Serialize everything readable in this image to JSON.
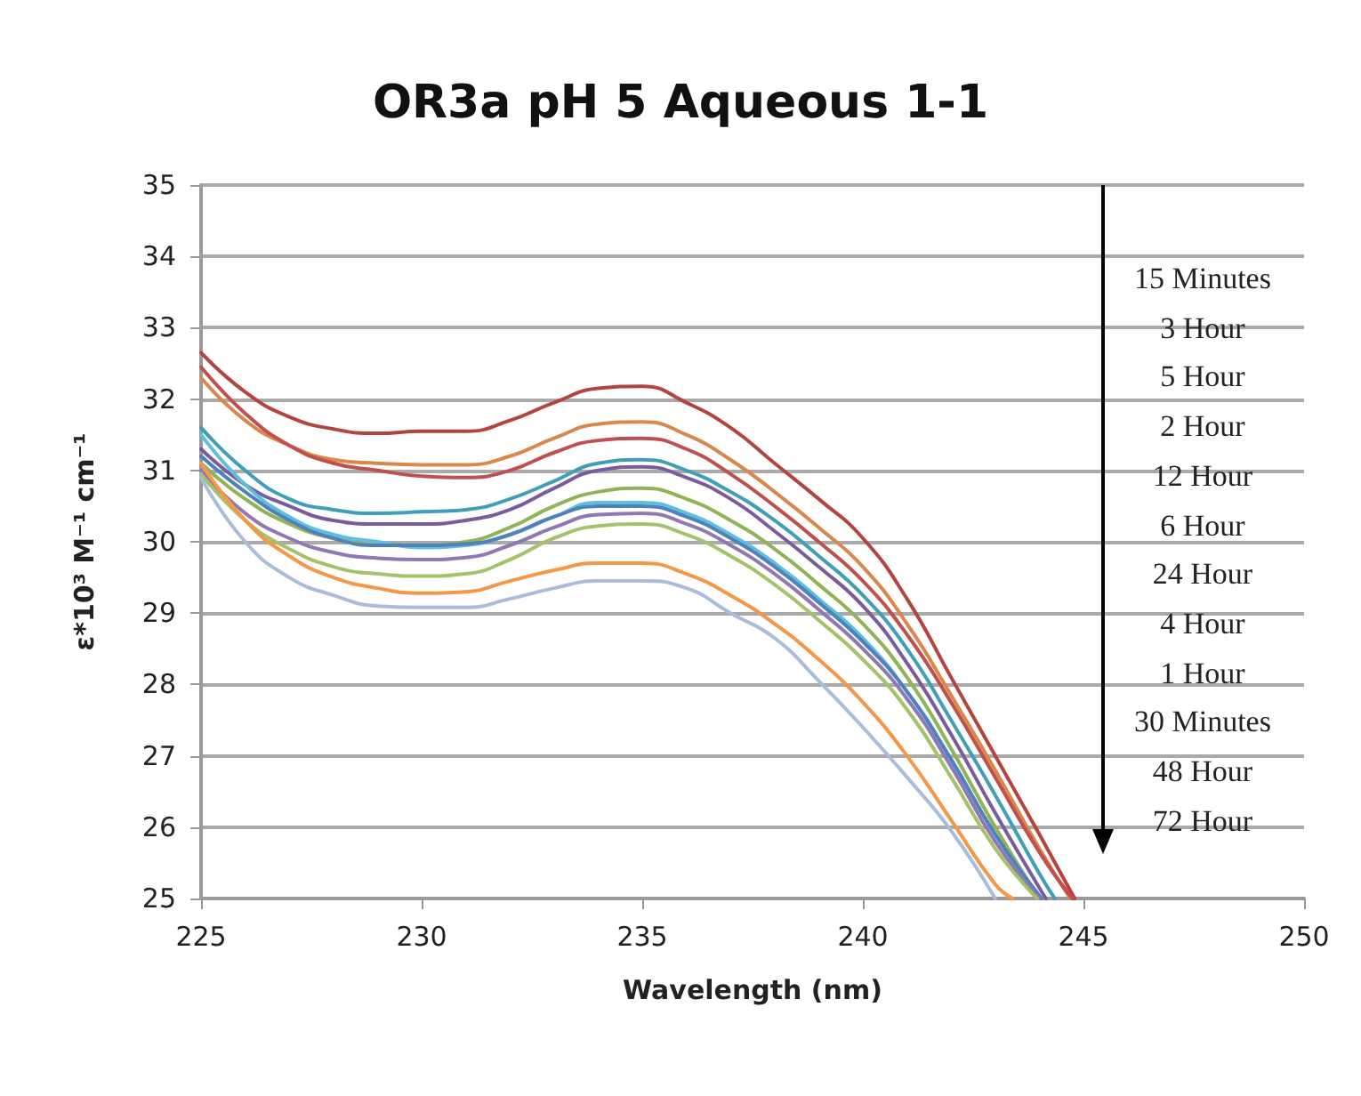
{
  "chart_data": {
    "type": "line",
    "title": "OR3a pH 5 Aqueous 1-1",
    "xlabel": "Wavelength (nm)",
    "ylabel": "ε*10³ M⁻¹ cm⁻¹",
    "xlim": [
      225,
      250
    ],
    "xticks": [
      225,
      230,
      235,
      240,
      245,
      250
    ],
    "ylim": [
      25,
      35
    ],
    "yticks": [
      25,
      26,
      27,
      28,
      29,
      30,
      31,
      32,
      33,
      34,
      35
    ],
    "grid": "y",
    "marker": "none",
    "line_style": "solid",
    "annotations": [
      "15 Minutes",
      "3 Hour",
      "5 Hour",
      "2 Hour",
      "12 Hour",
      "6 Hour",
      "24 Hour",
      "4 Hour",
      "1 Hour",
      "30 Minutes",
      "48 Hour",
      "72 Hour"
    ],
    "series": [
      {
        "color": "#b5443f",
        "x": [
          225,
          226,
          227,
          228,
          229,
          230,
          231,
          232,
          233,
          234,
          235,
          236,
          237,
          238,
          239,
          240,
          241,
          242,
          243,
          244,
          244.8
        ],
        "values": [
          32.65,
          32.1,
          31.75,
          31.58,
          31.52,
          31.55,
          31.55,
          31.7,
          31.95,
          32.15,
          32.18,
          31.95,
          31.6,
          31.1,
          30.6,
          30.05,
          29.2,
          28.1,
          27.0,
          25.9,
          25
        ]
      },
      {
        "color": "#d9874a",
        "x": [
          225,
          226,
          227,
          228,
          229,
          230,
          231,
          232,
          233,
          234,
          235,
          236,
          237,
          238,
          239,
          240,
          241,
          242,
          243,
          244,
          244.7
        ],
        "values": [
          32.3,
          31.7,
          31.35,
          31.15,
          31.1,
          31.08,
          31.08,
          31.2,
          31.45,
          31.65,
          31.68,
          31.5,
          31.15,
          30.7,
          30.2,
          29.65,
          28.85,
          27.85,
          26.8,
          25.7,
          25
        ]
      },
      {
        "color": "#c0504d",
        "x": [
          225,
          226,
          227,
          228,
          229,
          230,
          231,
          232,
          233,
          234,
          235,
          236,
          237,
          238,
          239,
          240,
          241,
          242,
          243,
          244,
          244.75
        ],
        "values": [
          32.45,
          31.8,
          31.35,
          31.1,
          31.0,
          30.92,
          30.9,
          31.0,
          31.25,
          31.42,
          31.45,
          31.3,
          30.95,
          30.5,
          30.0,
          29.45,
          28.7,
          27.75,
          26.7,
          25.65,
          25
        ]
      },
      {
        "color": "#3f9fb8",
        "x": [
          225,
          226,
          227,
          228,
          229,
          230,
          231,
          232,
          233,
          234,
          235,
          236,
          237,
          238,
          239,
          240,
          241,
          242,
          243,
          244,
          244.35
        ],
        "values": [
          31.6,
          31.0,
          30.6,
          30.45,
          30.4,
          30.42,
          30.45,
          30.6,
          30.85,
          31.1,
          31.15,
          31.0,
          30.7,
          30.3,
          29.8,
          29.25,
          28.5,
          27.5,
          26.45,
          25.35,
          25
        ]
      },
      {
        "color": "#7a5c9e",
        "x": [
          225,
          226,
          227,
          228,
          229,
          230,
          231,
          232,
          233,
          234,
          235,
          236,
          237,
          238,
          239,
          240,
          241,
          242,
          243,
          244,
          244.15
        ],
        "values": [
          31.3,
          30.8,
          30.5,
          30.3,
          30.25,
          30.25,
          30.3,
          30.45,
          30.75,
          31.0,
          31.05,
          30.9,
          30.6,
          30.15,
          29.65,
          29.1,
          28.3,
          27.3,
          26.2,
          25.15,
          25
        ]
      },
      {
        "color": "#8fb356",
        "x": [
          225,
          226,
          227,
          228,
          229,
          230,
          231,
          232,
          233,
          234,
          235,
          236,
          237,
          238,
          239,
          240,
          241,
          242,
          243,
          244
        ],
        "values": [
          31.1,
          30.6,
          30.25,
          30.05,
          29.97,
          29.95,
          30.0,
          30.2,
          30.5,
          30.7,
          30.75,
          30.6,
          30.3,
          29.9,
          29.4,
          28.85,
          28.1,
          27.1,
          26.0,
          25.0
        ]
      },
      {
        "color": "#5cc0dc",
        "x": [
          225,
          226,
          227,
          228,
          229,
          230,
          231,
          232,
          233,
          234,
          235,
          236,
          237,
          238,
          239,
          240,
          241,
          242,
          243,
          244.05
        ],
        "values": [
          31.5,
          30.8,
          30.35,
          30.1,
          30.0,
          29.92,
          29.95,
          30.1,
          30.35,
          30.55,
          30.55,
          30.4,
          30.1,
          29.7,
          29.2,
          28.65,
          27.9,
          26.95,
          25.9,
          25
        ]
      },
      {
        "color": "#4f81bd",
        "x": [
          225,
          226,
          227,
          228,
          229,
          230,
          231,
          232,
          233,
          234,
          235,
          236,
          237,
          238,
          239,
          240,
          241,
          242,
          243,
          244.05
        ],
        "values": [
          31.2,
          30.7,
          30.3,
          30.05,
          29.95,
          29.95,
          29.97,
          30.1,
          30.35,
          30.5,
          30.5,
          30.35,
          30.05,
          29.65,
          29.15,
          28.6,
          27.9,
          26.95,
          25.9,
          25
        ]
      },
      {
        "color": "#9078b4",
        "x": [
          225,
          226,
          227,
          228,
          229,
          230,
          231,
          232,
          233,
          234,
          235,
          236,
          237,
          238,
          239,
          240,
          241,
          242,
          243,
          244
        ],
        "values": [
          31.0,
          30.4,
          30.05,
          29.85,
          29.77,
          29.75,
          29.78,
          29.95,
          30.2,
          30.38,
          30.4,
          30.25,
          29.95,
          29.55,
          29.05,
          28.5,
          27.8,
          26.85,
          25.8,
          25
        ]
      },
      {
        "color": "#a5c26a",
        "x": [
          225,
          226,
          227,
          228,
          229,
          230,
          231,
          232,
          233,
          234,
          235,
          236,
          237,
          238,
          239,
          240,
          241,
          242,
          243,
          243.95
        ],
        "values": [
          30.95,
          30.3,
          29.9,
          29.65,
          29.55,
          29.52,
          29.55,
          29.75,
          30.05,
          30.22,
          30.25,
          30.1,
          29.8,
          29.4,
          28.9,
          28.35,
          27.65,
          26.7,
          25.7,
          25
        ]
      },
      {
        "color": "#f79646",
        "x": [
          225,
          226,
          227,
          228,
          229,
          230,
          231,
          232,
          233,
          234,
          235,
          236,
          237,
          238,
          239,
          240,
          241,
          242,
          243,
          243.4
        ],
        "values": [
          31.1,
          30.3,
          29.8,
          29.5,
          29.35,
          29.28,
          29.3,
          29.45,
          29.6,
          29.7,
          29.7,
          29.55,
          29.25,
          28.85,
          28.35,
          27.75,
          27.0,
          26.1,
          25.2,
          25
        ]
      },
      {
        "color": "#a9bcdc",
        "x": [
          225,
          226,
          227,
          228,
          229,
          230,
          231,
          232,
          233,
          234,
          235,
          236,
          237,
          238,
          239,
          240,
          241,
          242,
          243
        ],
        "values": [
          30.9,
          30.0,
          29.5,
          29.25,
          29.1,
          29.08,
          29.08,
          29.2,
          29.35,
          29.45,
          29.45,
          29.35,
          29.0,
          28.65,
          28.05,
          27.4,
          26.7,
          25.95,
          25.0
        ]
      }
    ]
  }
}
